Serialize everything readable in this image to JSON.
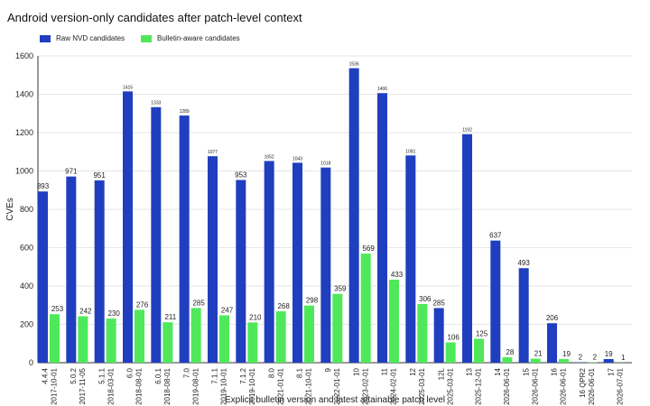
{
  "chart_data": {
    "type": "bar",
    "title": "Android version-only candidates after patch-level context",
    "xlabel": "Explicit bulletin version and latest attainable patch level",
    "ylabel": "CVEs",
    "ylim": [
      0,
      1600
    ],
    "yticks": [
      0,
      200,
      400,
      600,
      800,
      1000,
      1200,
      1400,
      1600
    ],
    "grid": true,
    "legend_position": "top-left",
    "colors": {
      "raw": "#1f3fbf",
      "bulletin": "#4fe85a"
    },
    "categories": [
      [
        "4.4.4",
        "2017-10-01"
      ],
      [
        "5.0.2",
        "2017-11-05"
      ],
      [
        "5.1.1",
        "2018-03-01"
      ],
      [
        "6.0",
        "2018-08-01"
      ],
      [
        "6.0.1",
        "2018-08-01"
      ],
      [
        "7.0",
        "2019-08-01"
      ],
      [
        "7.1.1",
        "2019-10-01"
      ],
      [
        "7.1.2",
        "2019-10-01"
      ],
      [
        "8.0",
        "2021-01-01"
      ],
      [
        "8.1",
        "2021-10-01"
      ],
      [
        "9",
        "2022-01-01"
      ],
      [
        "10",
        "2023-02-01"
      ],
      [
        "11",
        "2024-02-01"
      ],
      [
        "12",
        "2025-03-01"
      ],
      [
        "12L",
        "2025-03-01"
      ],
      [
        "13",
        "2025-12-01"
      ],
      [
        "14",
        "2026-06-01"
      ],
      [
        "15",
        "2026-06-01"
      ],
      [
        "16",
        "2026-06-01"
      ],
      [
        "16 QPR2",
        "2026-06-01"
      ],
      [
        "17",
        "2026-07-01"
      ]
    ],
    "series": [
      {
        "name": "Raw NVD candidates",
        "values": [
          893,
          971,
          951,
          1415,
          1333,
          1289,
          1077,
          953,
          1052,
          1043,
          1018,
          1536,
          1406,
          1081,
          285,
          1192,
          637,
          493,
          206,
          2,
          19
        ]
      },
      {
        "name": "Bulletin-aware candidates",
        "values": [
          253,
          242,
          230,
          276,
          211,
          285,
          247,
          210,
          268,
          298,
          359,
          569,
          433,
          306,
          106,
          125,
          28,
          21,
          19,
          2,
          1
        ]
      }
    ]
  }
}
